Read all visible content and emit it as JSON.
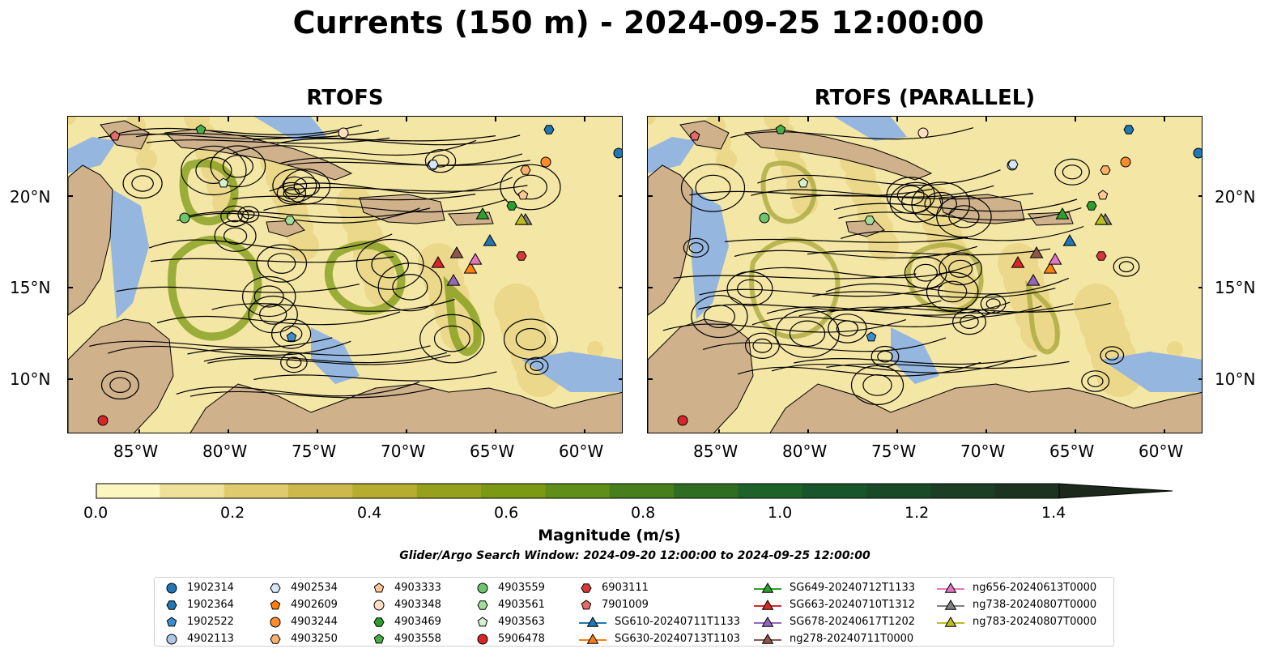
{
  "figure": {
    "title": "Currents (150 m) - 2024-09-25 12:00:00",
    "panels": [
      {
        "title": "RTOFS"
      },
      {
        "title": "RTOFS (PARALLEL)"
      }
    ],
    "lon_ticks": [
      "85°W",
      "80°W",
      "75°W",
      "70°W",
      "65°W",
      "60°W"
    ],
    "lat_ticks": [
      "20°N",
      "15°N",
      "10°N"
    ],
    "colorbar": {
      "label": "Magnitude (m/s)",
      "ticks": [
        "0.0",
        "0.2",
        "0.4",
        "0.6",
        "0.8",
        "1.0",
        "1.2",
        "1.4"
      ],
      "colors": [
        "#fbf5bf",
        "#efe19a",
        "#dfcb6e",
        "#cdb84c",
        "#b5ac30",
        "#95a11c",
        "#7c9914",
        "#5f8f18",
        "#467f1c",
        "#2f6e22",
        "#1d6228",
        "#18552a",
        "#194a28",
        "#1b3e24",
        "#1c3320",
        "#1c281b"
      ]
    },
    "search_window": "Glider/Argo Search Window: 2024-09-20 12:00:00 to 2024-09-25 12:00:00",
    "legend": [
      {
        "label": "1902314",
        "marker": "circle",
        "color": "#1f77b4"
      },
      {
        "label": "1902364",
        "marker": "hexagon",
        "color": "#1f77b4"
      },
      {
        "label": "1902522",
        "marker": "pentagon",
        "color": "#3a8ed0"
      },
      {
        "label": "4902113",
        "marker": "circle",
        "color": "#aec7e8"
      },
      {
        "label": "4902534",
        "marker": "hexagon",
        "color": "#d6e8f7"
      },
      {
        "label": "4902609",
        "marker": "pentagon",
        "color": "#ff7f0e"
      },
      {
        "label": "4903244",
        "marker": "circle",
        "color": "#ff8c2a"
      },
      {
        "label": "4903250",
        "marker": "hexagon",
        "color": "#ffb06a"
      },
      {
        "label": "4903333",
        "marker": "pentagon",
        "color": "#ffc896"
      },
      {
        "label": "4903348",
        "marker": "circle",
        "color": "#ffdfc0"
      },
      {
        "label": "4903469",
        "marker": "hexagon",
        "color": "#2ca02c"
      },
      {
        "label": "4903558",
        "marker": "pentagon",
        "color": "#45b045"
      },
      {
        "label": "4903559",
        "marker": "circle",
        "color": "#6cc56c"
      },
      {
        "label": "4903561",
        "marker": "hexagon",
        "color": "#a3dd9a"
      },
      {
        "label": "4903563",
        "marker": "pentagon",
        "color": "#d4f2cd"
      },
      {
        "label": "5906478",
        "marker": "circle",
        "color": "#d62728"
      },
      {
        "label": "6903111",
        "marker": "hexagon",
        "color": "#d83838"
      },
      {
        "label": "7901009",
        "marker": "pentagon",
        "color": "#e56a6a"
      },
      {
        "label": "SG610-20240711T1133",
        "marker": "triangle",
        "color": "#1f77b4"
      },
      {
        "label": "SG630-20240713T1103",
        "marker": "triangle",
        "color": "#ff7f0e"
      },
      {
        "label": "SG649-20240712T1133",
        "marker": "triangle",
        "color": "#2ca02c"
      },
      {
        "label": "SG663-20240710T1312",
        "marker": "triangle",
        "color": "#d62728"
      },
      {
        "label": "SG678-20240617T1202",
        "marker": "triangle",
        "color": "#9467bd"
      },
      {
        "label": "ng278-20240711T0000",
        "marker": "triangle",
        "color": "#8c564b"
      },
      {
        "label": "ng656-20240613T0000",
        "marker": "triangle",
        "color": "#e377c2"
      },
      {
        "label": "ng738-20240807T0000",
        "marker": "triangle",
        "color": "#7f7f7f"
      },
      {
        "label": "ng783-20240807T0000",
        "marker": "triangle",
        "color": "#bcbd22"
      }
    ],
    "colors": {
      "land": "#cfb28c",
      "shallow_water": "#95b6de",
      "stream": "#000000"
    }
  }
}
